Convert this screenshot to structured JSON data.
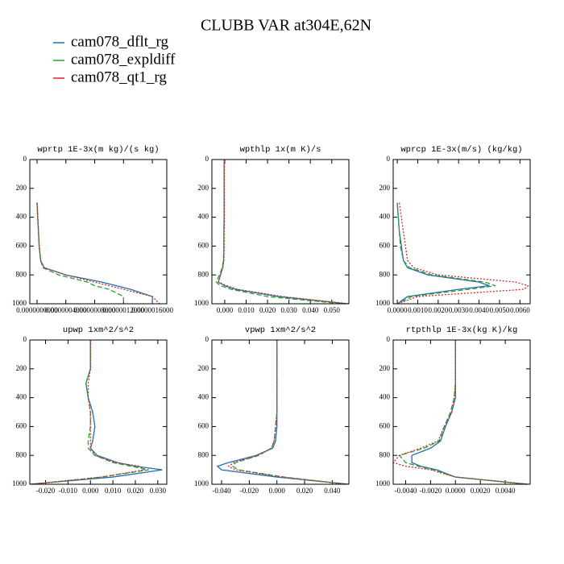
{
  "title": "CLUBB VAR at304E,62N",
  "legend": [
    {
      "name": "cam078_dflt_rg",
      "color": "#1f6fb5"
    },
    {
      "name": "cam078_expldiff",
      "color": "#2ca02c"
    },
    {
      "name": "cam078_qt1_rg",
      "color": "#d62728"
    }
  ],
  "chart_data": [
    {
      "type": "line",
      "title": "wprtp  1E-3x(m kg)/(s kg)",
      "y_inverted": true,
      "y": [
        0,
        100,
        200,
        300,
        400,
        500,
        600,
        700,
        750,
        800,
        850,
        875,
        900,
        950,
        1000
      ],
      "xlim": [
        -1e-07,
        1.8e-06
      ],
      "ylim": [
        0,
        1000
      ],
      "xticks": [
        {
          "value": 0,
          "label": "0.0000000000"
        },
        {
          "value": 4e-07,
          "label": "0.0000004000"
        },
        {
          "value": 8e-07,
          "label": "0.0000008000"
        },
        {
          "value": 1.2e-06,
          "label": "0.0000012000"
        },
        {
          "value": 1.6e-06,
          "label": "0.0000016000"
        }
      ],
      "yticks": [
        0,
        200,
        400,
        600,
        800,
        1000
      ],
      "series": [
        {
          "color": "#1f6fb5",
          "dash": "none",
          "values": [
            null,
            null,
            null,
            0,
            1e-08,
            2e-08,
            3e-08,
            5e-08,
            1e-07,
            4e-07,
            9e-07,
            1.1e-06,
            1.3e-06,
            1.6e-06,
            1.6e-06
          ]
        },
        {
          "color": "#2ca02c",
          "dash": "6 3",
          "values": [
            null,
            null,
            null,
            0,
            1e-08,
            2e-08,
            3e-08,
            5e-08,
            8e-08,
            3e-07,
            7e-07,
            8e-07,
            1e-06,
            1.2e-06,
            1.2e-06
          ]
        },
        {
          "color": "#d62728",
          "dash": "2 2",
          "values": [
            null,
            null,
            null,
            0,
            1e-08,
            2e-08,
            3e-08,
            5e-08,
            1e-07,
            4e-07,
            8e-07,
            1e-06,
            1.2e-06,
            1.6e-06,
            1.7e-06
          ]
        }
      ]
    },
    {
      "type": "line",
      "title": "wpthlp  1x(m K)/s",
      "y_inverted": true,
      "y": [
        0,
        100,
        200,
        300,
        400,
        500,
        600,
        700,
        750,
        800,
        850,
        875,
        900,
        950,
        1000
      ],
      "xlim": [
        -0.006,
        0.058
      ],
      "ylim": [
        0,
        1000
      ],
      "xticks": [
        {
          "value": 0,
          "label": "0.000"
        },
        {
          "value": 0.01,
          "label": "0.010"
        },
        {
          "value": 0.02,
          "label": "0.020"
        },
        {
          "value": 0.03,
          "label": "0.030"
        },
        {
          "value": 0.04,
          "label": "0.040"
        },
        {
          "value": 0.05,
          "label": "0.050"
        }
      ],
      "yticks": [
        0,
        200,
        400,
        600,
        800,
        1000
      ],
      "series": [
        {
          "color": "#1f6fb5",
          "dash": "none",
          "values": [
            -0.0003,
            -0.0003,
            -0.0003,
            -0.0003,
            -0.0003,
            -0.0004,
            -0.0004,
            -0.0005,
            -0.001,
            -0.002,
            -0.003,
            0.0,
            0.005,
            0.025,
            0.057
          ]
        },
        {
          "color": "#2ca02c",
          "dash": "6 3",
          "values": [
            -0.0003,
            -0.0003,
            -0.0003,
            -0.0003,
            -0.0003,
            -0.0004,
            -0.0004,
            -0.0006,
            -0.0012,
            -0.0025,
            -0.004,
            -0.002,
            0.003,
            0.02,
            0.055
          ]
        },
        {
          "color": "#d62728",
          "dash": "2 2",
          "values": [
            -0.0002,
            -0.0002,
            -0.0002,
            -0.0002,
            -0.0002,
            -0.0003,
            -0.0003,
            -0.0004,
            -0.0009,
            -0.002,
            -0.003,
            0.001,
            0.006,
            0.027,
            0.058
          ]
        }
      ]
    },
    {
      "type": "line",
      "title": "wprcp  1E-3x(m/s) (kg/kg)",
      "y_inverted": true,
      "y": [
        0,
        100,
        200,
        300,
        400,
        500,
        600,
        700,
        750,
        800,
        850,
        875,
        900,
        950,
        1000
      ],
      "xlim": [
        -0.0002,
        0.0065
      ],
      "ylim": [
        0,
        1000
      ],
      "xticks": [
        {
          "value": 0,
          "label": "0.0000"
        },
        {
          "value": 0.001,
          "label": "0.0010"
        },
        {
          "value": 0.002,
          "label": "0.0020"
        },
        {
          "value": 0.003,
          "label": "0.0030"
        },
        {
          "value": 0.004,
          "label": "0.0040"
        },
        {
          "value": 0.005,
          "label": "0.0050"
        },
        {
          "value": 0.006,
          "label": "0.0060"
        }
      ],
      "yticks": [
        0,
        200,
        400,
        600,
        800,
        1000
      ],
      "series": [
        {
          "color": "#1f6fb5",
          "dash": "none",
          "values": [
            null,
            null,
            null,
            0,
            5e-05,
            0.0001,
            0.0002,
            0.0003,
            0.0005,
            0.0015,
            0.004,
            0.0045,
            0.003,
            0.0005,
            0
          ]
        },
        {
          "color": "#2ca02c",
          "dash": "6 3",
          "values": [
            null,
            null,
            null,
            0,
            5e-05,
            0.0001,
            0.00015,
            0.0003,
            0.0006,
            0.0017,
            0.0043,
            0.0048,
            0.0035,
            0.0007,
            0
          ]
        },
        {
          "color": "#d62728",
          "dash": "2 2",
          "values": [
            null,
            null,
            null,
            0.0001,
            0.0002,
            0.0003,
            0.0004,
            0.0005,
            0.0008,
            0.002,
            0.0058,
            0.0064,
            0.0062,
            0.001,
            0
          ]
        }
      ]
    },
    {
      "type": "line",
      "title": "upwp  1xm^2/s^2",
      "y_inverted": true,
      "y": [
        0,
        100,
        200,
        300,
        400,
        500,
        600,
        700,
        750,
        800,
        850,
        875,
        900,
        950,
        1000
      ],
      "xlim": [
        -0.027,
        0.034
      ],
      "ylim": [
        0,
        1000
      ],
      "xticks": [
        {
          "value": -0.02,
          "label": "-0.020"
        },
        {
          "value": -0.01,
          "label": "-0.010"
        },
        {
          "value": 0,
          "label": "0.000"
        },
        {
          "value": 0.01,
          "label": "0.010"
        },
        {
          "value": 0.02,
          "label": "0.020"
        },
        {
          "value": 0.03,
          "label": "0.030"
        }
      ],
      "yticks": [
        0,
        200,
        400,
        600,
        800,
        1000
      ],
      "series": [
        {
          "color": "#1f6fb5",
          "dash": "none",
          "values": [
            0,
            0,
            0,
            -0.002,
            -0.001,
            0.001,
            0.002,
            0.001,
            0,
            0.003,
            0.012,
            0.02,
            0.032,
            0.01,
            -0.027
          ]
        },
        {
          "color": "#2ca02c",
          "dash": "6 3",
          "values": [
            0,
            0,
            0,
            -0.002,
            -0.001,
            0.0,
            0.0,
            -0.001,
            -0.001,
            0.002,
            0.01,
            0.018,
            0.026,
            0.005,
            -0.026
          ]
        },
        {
          "color": "#d62728",
          "dash": "2 2",
          "values": [
            0,
            0,
            0,
            -0.001,
            -0.001,
            0.0,
            0.0,
            0.0,
            0,
            0.002,
            0.011,
            0.022,
            0.024,
            0.005,
            -0.026
          ]
        }
      ]
    },
    {
      "type": "line",
      "title": "vpwp  1xm^2/s^2",
      "y_inverted": true,
      "y": [
        0,
        100,
        200,
        300,
        400,
        500,
        600,
        700,
        750,
        800,
        850,
        875,
        900,
        950,
        1000
      ],
      "xlim": [
        -0.047,
        0.052
      ],
      "ylim": [
        0,
        1000
      ],
      "xticks": [
        {
          "value": -0.04,
          "label": "-0.040"
        },
        {
          "value": -0.02,
          "label": "-0.020"
        },
        {
          "value": 0,
          "label": "0.000"
        },
        {
          "value": 0.02,
          "label": "0.020"
        },
        {
          "value": 0.04,
          "label": "0.040"
        }
      ],
      "yticks": [
        0,
        200,
        400,
        600,
        800,
        1000
      ],
      "series": [
        {
          "color": "#1f6fb5",
          "dash": "none",
          "values": [
            0,
            0,
            0,
            0,
            0,
            0,
            0,
            -0.001,
            -0.003,
            -0.015,
            -0.035,
            -0.043,
            -0.04,
            0,
            0.052
          ]
        },
        {
          "color": "#2ca02c",
          "dash": "6 3",
          "values": [
            0,
            0,
            0,
            0,
            0,
            0,
            -0.001,
            -0.002,
            -0.004,
            -0.013,
            -0.03,
            -0.032,
            -0.028,
            0.005,
            0.05
          ]
        },
        {
          "color": "#d62728",
          "dash": "2 2",
          "values": [
            0,
            0,
            0,
            0,
            0,
            0,
            -0.001,
            -0.002,
            -0.004,
            -0.014,
            -0.031,
            -0.035,
            -0.03,
            0.004,
            0.05
          ]
        }
      ]
    },
    {
      "type": "line",
      "title": "rtpthlp  1E-3x(kg K)/kg",
      "y_inverted": true,
      "y": [
        0,
        100,
        200,
        300,
        400,
        500,
        600,
        700,
        750,
        800,
        850,
        875,
        900,
        950,
        1000
      ],
      "xlim": [
        -0.005,
        0.006
      ],
      "ylim": [
        0,
        1000
      ],
      "xticks": [
        {
          "value": -0.004,
          "label": "-0.0040"
        },
        {
          "value": -0.002,
          "label": "-0.0020"
        },
        {
          "value": 0,
          "label": "0.0000"
        },
        {
          "value": 0.002,
          "label": "0.0020"
        },
        {
          "value": 0.004,
          "label": "0.0040"
        }
      ],
      "yticks": [
        0,
        200,
        400,
        600,
        800,
        1000
      ],
      "series": [
        {
          "color": "#1f6fb5",
          "dash": "none",
          "values": [
            0,
            0,
            0,
            0,
            0,
            -0.0003,
            -0.0008,
            -0.0012,
            -0.002,
            -0.0035,
            -0.0035,
            -0.0028,
            -0.0015,
            0,
            0.0058
          ]
        },
        {
          "color": "#2ca02c",
          "dash": "6 3",
          "values": [
            0,
            0,
            0,
            0,
            -0.0001,
            -0.0004,
            -0.0009,
            -0.0013,
            -0.0025,
            -0.0045,
            -0.004,
            -0.003,
            -0.0018,
            0,
            0.0057
          ]
        },
        {
          "color": "#d62728",
          "dash": "2 2",
          "values": [
            0,
            0,
            0,
            0,
            -0.0001,
            -0.0003,
            -0.0009,
            -0.0014,
            -0.0028,
            -0.0045,
            -0.005,
            -0.004,
            -0.002,
            0,
            0.0058
          ]
        }
      ]
    }
  ]
}
